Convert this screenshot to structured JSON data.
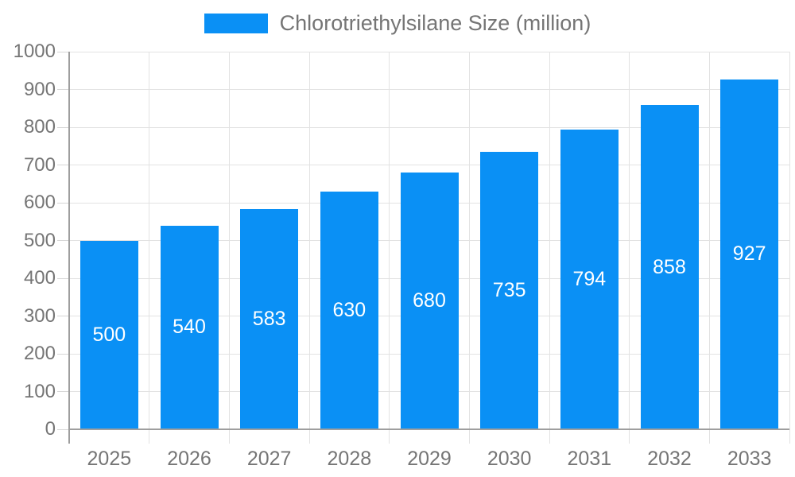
{
  "chart_data": {
    "type": "bar",
    "title": "",
    "legend": "Chlorotriethylsilane Size (million)",
    "legend_position": "top-center",
    "categories": [
      "2025",
      "2026",
      "2027",
      "2028",
      "2029",
      "2030",
      "2031",
      "2032",
      "2033"
    ],
    "values": [
      500,
      540,
      583,
      630,
      680,
      735,
      794,
      858,
      927
    ],
    "xlabel": "",
    "ylabel": "",
    "ylim": [
      0,
      1000
    ],
    "ytick_step": 100,
    "ytick_labels": [
      "0",
      "100",
      "200",
      "300",
      "400",
      "500",
      "600",
      "700",
      "800",
      "900",
      "1000"
    ],
    "grid": true,
    "bar_labels_shown": true
  },
  "colors": {
    "bar": "#0a90f5",
    "bar_label": "#ffffff",
    "text": "#757575",
    "axis": "#9e9e9e",
    "grid": "#e2e2e2",
    "tick": "#d6d6d6",
    "background": "#ffffff"
  }
}
